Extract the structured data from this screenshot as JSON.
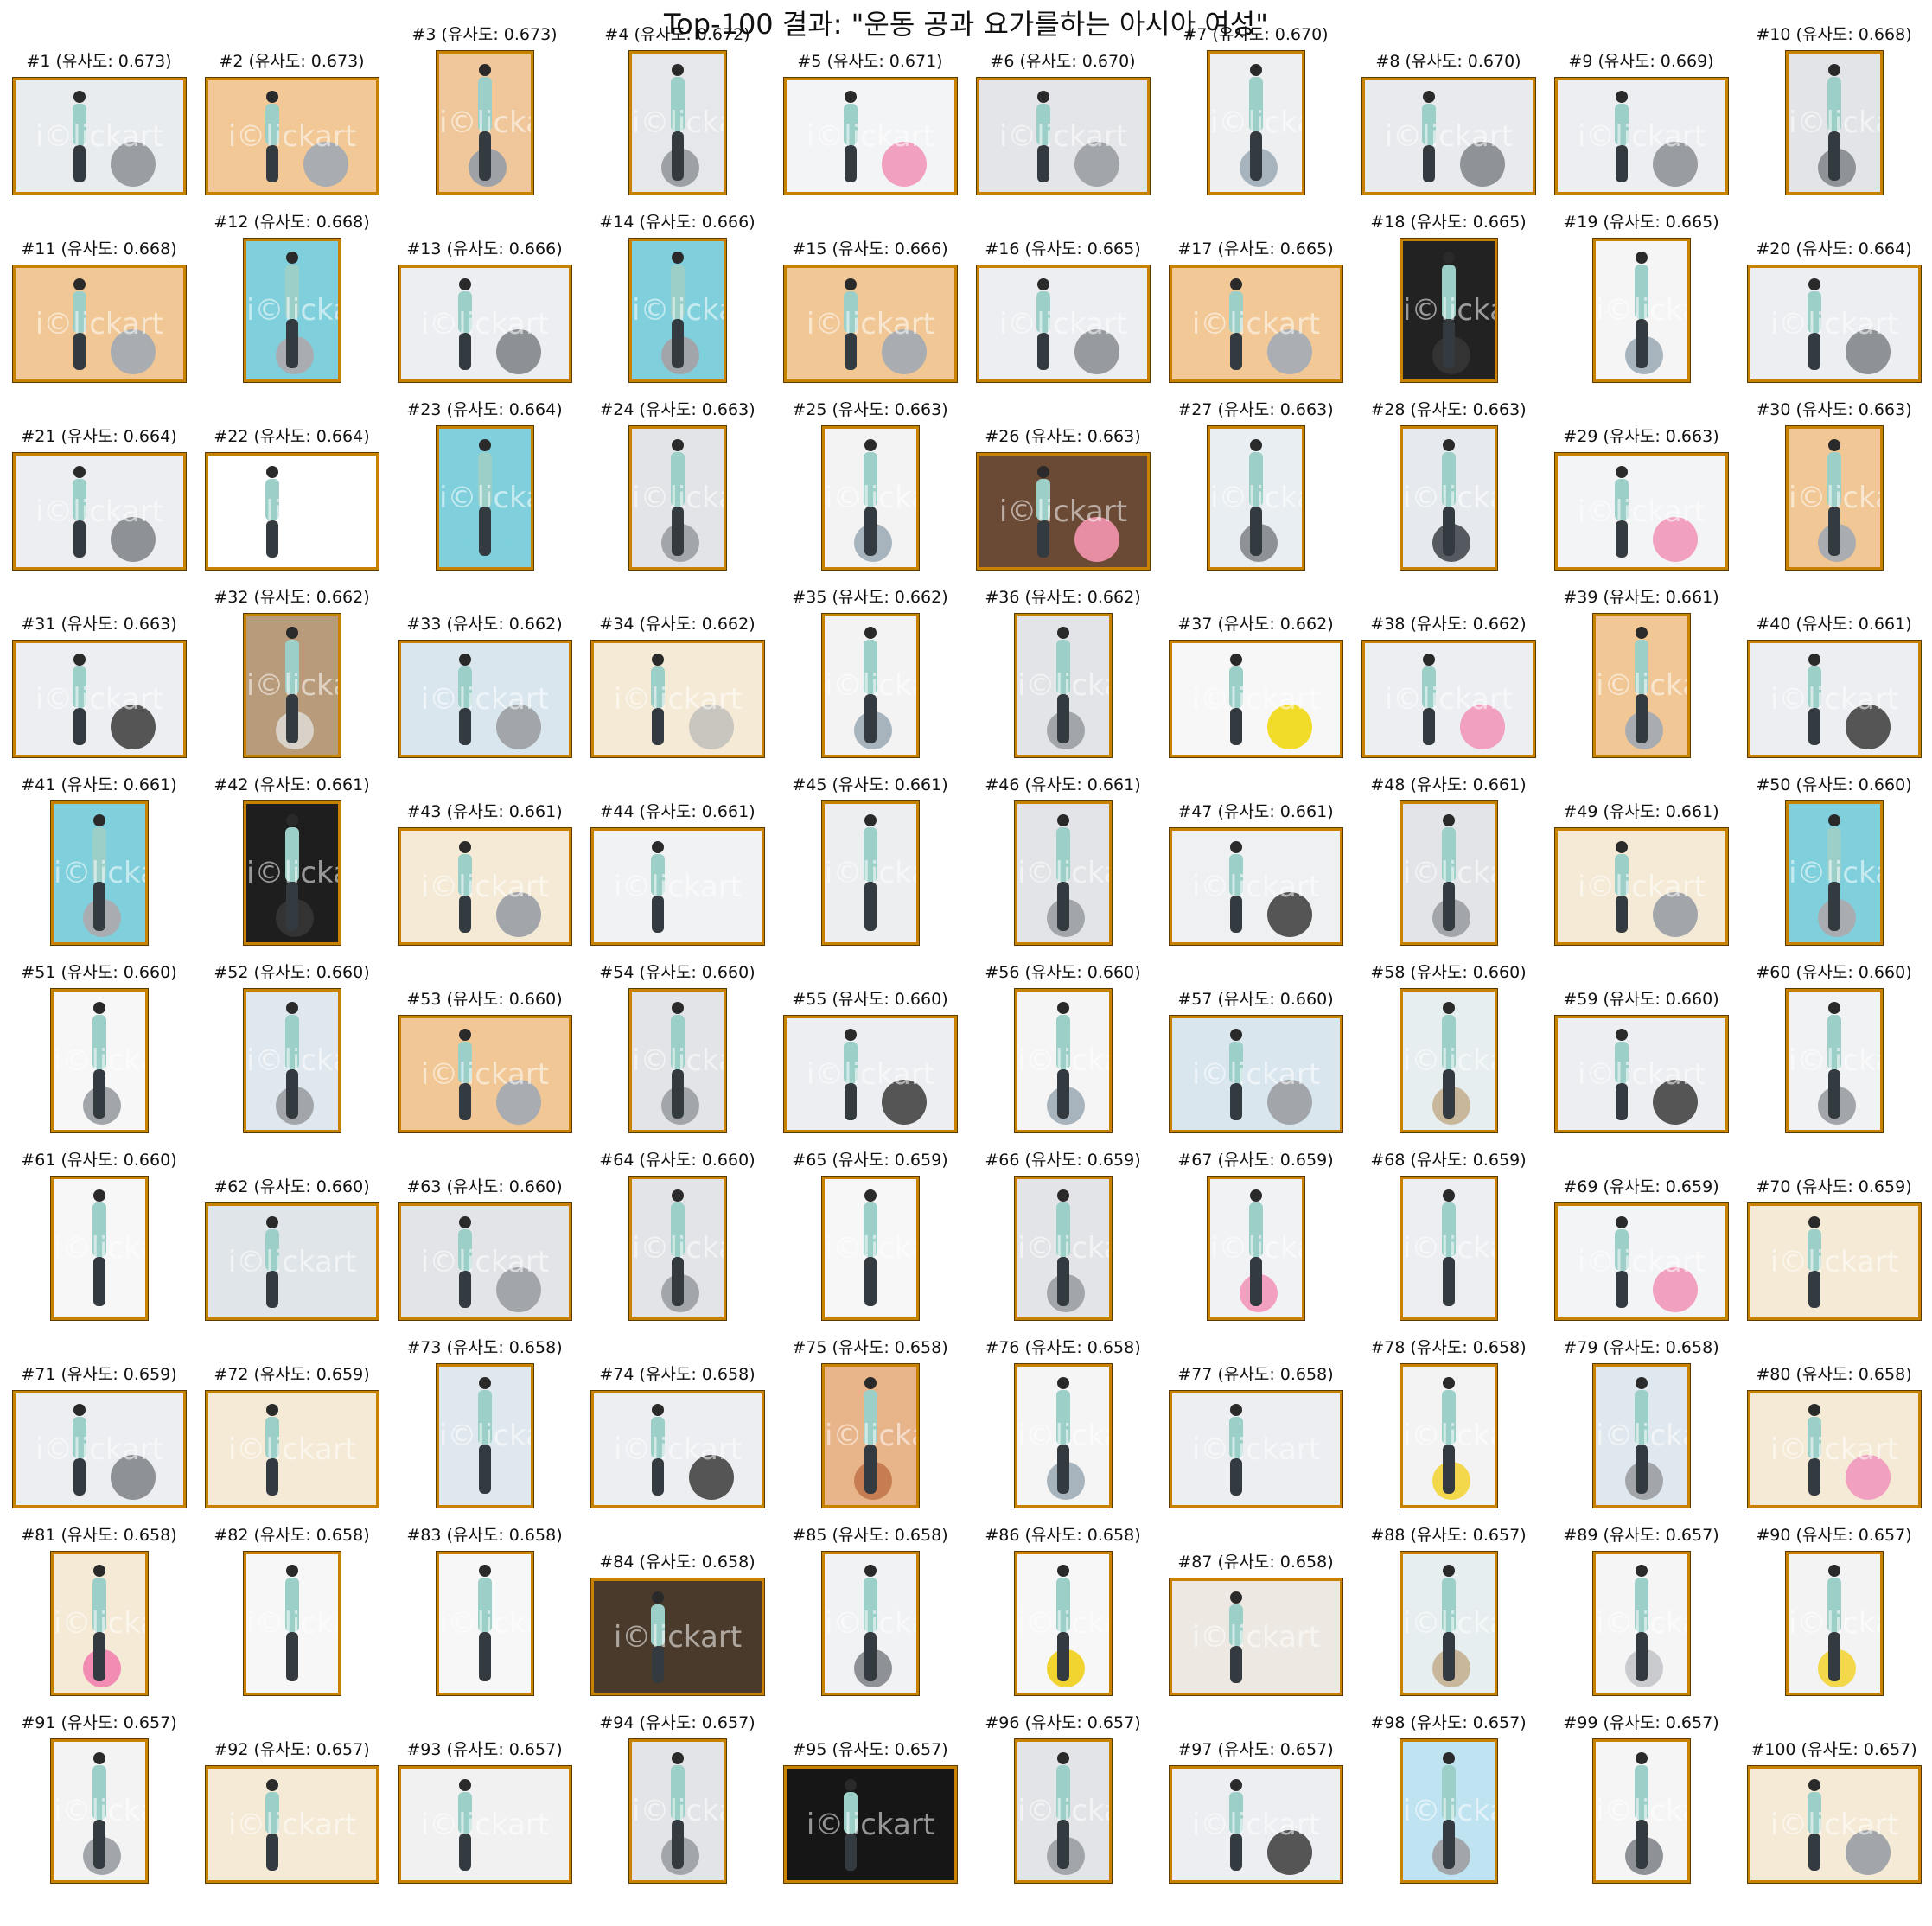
{
  "page_title": "Top-100 결과: \"운동 공과 요가를하는 아시아 여성\"",
  "watermark": "i©lickart",
  "results": [
    {
      "label": "#1 (유사도: 0.673)",
      "o": "L",
      "bg": "#e9ecef",
      "ball": "#9a9ea3"
    },
    {
      "label": "#2 (유사도: 0.673)",
      "o": "L",
      "bg": "#f2c896",
      "ball": "#a9adb2"
    },
    {
      "label": "#3 (유사도: 0.673)",
      "o": "P",
      "bg": "#f0c79a",
      "ball": "#9ea2a7"
    },
    {
      "label": "#4 (유사도: 0.672)",
      "o": "P",
      "bg": "#e6e7ea",
      "ball": "#9da1a6"
    },
    {
      "label": "#5 (유사도: 0.671)",
      "o": "L",
      "bg": "#f3f4f6",
      "ball": "#f2a0c0"
    },
    {
      "label": "#6 (유사도: 0.670)",
      "o": "L",
      "bg": "#e4e5e8",
      "ball": "#a2a6ab"
    },
    {
      "label": "#7 (유사도: 0.670)",
      "o": "P",
      "bg": "#eeeff1",
      "ball": "#a7b4bd"
    },
    {
      "label": "#8 (유사도: 0.670)",
      "o": "L",
      "bg": "#e8eaed",
      "ball": "#8f9398"
    },
    {
      "label": "#9 (유사도: 0.669)",
      "o": "L",
      "bg": "#eceef1",
      "ball": "#999da2"
    },
    {
      "label": "#10 (유사도: 0.668)",
      "o": "P",
      "bg": "#e3e4e7",
      "ball": "#8f9397"
    },
    {
      "label": "#11 (유사도: 0.668)",
      "o": "L",
      "bg": "#f1c795",
      "ball": "#a9adb1"
    },
    {
      "label": "#12 (유사도: 0.668)",
      "o": "P",
      "bg": "#7fd0dc",
      "ball": "#a9adb1"
    },
    {
      "label": "#13 (유사도: 0.666)",
      "o": "L",
      "bg": "#eceef1",
      "ball": "#8d9196"
    },
    {
      "label": "#14 (유사도: 0.666)",
      "o": "P",
      "bg": "#7fd0dc",
      "ball": "#a2a6ab"
    },
    {
      "label": "#15 (유사도: 0.666)",
      "o": "L",
      "bg": "#f1c795",
      "ball": "#a9adb1"
    },
    {
      "label": "#16 (유사도: 0.665)",
      "o": "L",
      "bg": "#eceef1",
      "ball": "#979ba0"
    },
    {
      "label": "#17 (유사도: 0.665)",
      "o": "L",
      "bg": "#f2c896",
      "ball": "#abafb4"
    },
    {
      "label": "#18 (유사도: 0.665)",
      "o": "P",
      "bg": "#222222",
      "ball": "#333333"
    },
    {
      "label": "#19 (유사도: 0.665)",
      "o": "P",
      "bg": "#f5f5f5",
      "ball": "#a7b4bd"
    },
    {
      "label": "#20 (유사도: 0.664)",
      "o": "L",
      "bg": "#eceef1",
      "ball": "#8e9297"
    },
    {
      "label": "#21 (유사도: 0.664)",
      "o": "L",
      "bg": "#eceef1",
      "ball": "#8e9297"
    },
    {
      "label": "#22 (유사도: 0.664)",
      "o": "L",
      "bg": "#ffffff",
      "ball": "#ffffff"
    },
    {
      "label": "#23 (유사도: 0.664)",
      "o": "P",
      "bg": "#7fd0dc",
      "ball": "#7fd0dc"
    },
    {
      "label": "#24 (유사도: 0.663)",
      "o": "P",
      "bg": "#e3e4e7",
      "ball": "#a2a6ab"
    },
    {
      "label": "#25 (유사도: 0.663)",
      "o": "P",
      "bg": "#f3f3f3",
      "ball": "#a7b4bd"
    },
    {
      "label": "#26 (유사도: 0.663)",
      "o": "L",
      "bg": "#6b4a35",
      "ball": "#e88ea4"
    },
    {
      "label": "#27 (유사도: 0.663)",
      "o": "P",
      "bg": "#e8eef2",
      "ball": "#8e9297"
    },
    {
      "label": "#28 (유사도: 0.663)",
      "o": "P",
      "bg": "#e6eaee",
      "ball": "#555a60"
    },
    {
      "label": "#29 (유사도: 0.663)",
      "o": "L",
      "bg": "#f3f4f6",
      "ball": "#f2a0c0"
    },
    {
      "label": "#30 (유사도: 0.663)",
      "o": "P",
      "bg": "#f1c795",
      "ball": "#a9adb1"
    },
    {
      "label": "#31 (유사도: 0.663)",
      "o": "L",
      "bg": "#eceef1",
      "ball": "#555555"
    },
    {
      "label": "#32 (유사도: 0.662)",
      "o": "P",
      "bg": "#b89b7a",
      "ball": "#d9d2c8"
    },
    {
      "label": "#33 (유사도: 0.662)",
      "o": "L",
      "bg": "#d9e6ee",
      "ball": "#a2a6ab"
    },
    {
      "label": "#34 (유사도: 0.662)",
      "o": "L",
      "bg": "#f4ead6",
      "ball": "#c9c6bf"
    },
    {
      "label": "#35 (유사도: 0.662)",
      "o": "P",
      "bg": "#f3f3f3",
      "ball": "#a7b4bd"
    },
    {
      "label": "#36 (유사도: 0.662)",
      "o": "P",
      "bg": "#e3e4e7",
      "ball": "#a2a6ab"
    },
    {
      "label": "#37 (유사도: 0.662)",
      "o": "L",
      "bg": "#f7f7f7",
      "ball": "#f2dc2a"
    },
    {
      "label": "#38 (유사도: 0.662)",
      "o": "L",
      "bg": "#eceef1",
      "ball": "#f2a0c0"
    },
    {
      "label": "#39 (유사도: 0.661)",
      "o": "P",
      "bg": "#f1c795",
      "ball": "#a9adb1"
    },
    {
      "label": "#40 (유사도: 0.661)",
      "o": "L",
      "bg": "#eceef1",
      "ball": "#555555"
    },
    {
      "label": "#41 (유사도: 0.661)",
      "o": "P",
      "bg": "#7fd0dc",
      "ball": "#a9adb1"
    },
    {
      "label": "#42 (유사도: 0.661)",
      "o": "P",
      "bg": "#1e1e1e",
      "ball": "#333333"
    },
    {
      "label": "#43 (유사도: 0.661)",
      "o": "L",
      "bg": "#f4ead6",
      "ball": "#a2a6ab"
    },
    {
      "label": "#44 (유사도: 0.661)",
      "o": "L",
      "bg": "#f1f2f4",
      "ball": "#f1f2f4"
    },
    {
      "label": "#45 (유사도: 0.661)",
      "o": "P",
      "bg": "#eceef0",
      "ball": "#eceef0"
    },
    {
      "label": "#46 (유사도: 0.661)",
      "o": "P",
      "bg": "#e3e4e7",
      "ball": "#a2a6ab"
    },
    {
      "label": "#47 (유사도: 0.661)",
      "o": "L",
      "bg": "#eef0f2",
      "ball": "#555555"
    },
    {
      "label": "#48 (유사도: 0.661)",
      "o": "P",
      "bg": "#e3e4e7",
      "ball": "#a2a6ab"
    },
    {
      "label": "#49 (유사도: 0.661)",
      "o": "L",
      "bg": "#f4ead6",
      "ball": "#a2a6ab"
    },
    {
      "label": "#50 (유사도: 0.660)",
      "o": "P",
      "bg": "#7fd0dc",
      "ball": "#a9adb1"
    },
    {
      "label": "#51 (유사도: 0.660)",
      "o": "P",
      "bg": "#f7f7f7",
      "ball": "#a2a6ab"
    },
    {
      "label": "#52 (유사도: 0.660)",
      "o": "P",
      "bg": "#dfe8ee",
      "ball": "#a2a6ab"
    },
    {
      "label": "#53 (유사도: 0.660)",
      "o": "L",
      "bg": "#f1c795",
      "ball": "#a9adb1"
    },
    {
      "label": "#54 (유사도: 0.660)",
      "o": "P",
      "bg": "#e3e4e7",
      "ball": "#a2a6ab"
    },
    {
      "label": "#55 (유사도: 0.660)",
      "o": "L",
      "bg": "#eceef1",
      "ball": "#555555"
    },
    {
      "label": "#56 (유사도: 0.660)",
      "o": "P",
      "bg": "#f5f5f5",
      "ball": "#a7b4bd"
    },
    {
      "label": "#57 (유사도: 0.660)",
      "o": "L",
      "bg": "#d9e6ee",
      "ball": "#a2a6ab"
    },
    {
      "label": "#58 (유사도: 0.660)",
      "o": "P",
      "bg": "#e6eef0",
      "ball": "#c8b79a"
    },
    {
      "label": "#59 (유사도: 0.660)",
      "o": "L",
      "bg": "#eceef1",
      "ball": "#555555"
    },
    {
      "label": "#60 (유사도: 0.660)",
      "o": "P",
      "bg": "#f1f2f4",
      "ball": "#a2a6ab"
    },
    {
      "label": "#61 (유사도: 0.660)",
      "o": "P",
      "bg": "#f7f7f7",
      "ball": "#f7f7f7"
    },
    {
      "label": "#62 (유사도: 0.660)",
      "o": "L",
      "bg": "#dfe5e8",
      "ball": "#dfe5e8"
    },
    {
      "label": "#63 (유사도: 0.660)",
      "o": "L",
      "bg": "#e3e4e7",
      "ball": "#a2a6ab"
    },
    {
      "label": "#64 (유사도: 0.660)",
      "o": "P",
      "bg": "#e3e4e7",
      "ball": "#a2a6ab"
    },
    {
      "label": "#65 (유사도: 0.659)",
      "o": "P",
      "bg": "#f7f7f7",
      "ball": "#f7f7f7"
    },
    {
      "label": "#66 (유사도: 0.659)",
      "o": "P",
      "bg": "#e3e4e7",
      "ball": "#a2a6ab"
    },
    {
      "label": "#67 (유사도: 0.659)",
      "o": "P",
      "bg": "#f1f2f4",
      "ball": "#f2a0c0"
    },
    {
      "label": "#68 (유사도: 0.659)",
      "o": "P",
      "bg": "#eceef1",
      "ball": "#eceef1"
    },
    {
      "label": "#69 (유사도: 0.659)",
      "o": "L",
      "bg": "#f3f4f6",
      "ball": "#f2a0c0"
    },
    {
      "label": "#70 (유사도: 0.659)",
      "o": "L",
      "bg": "#f4ead6",
      "ball": "#f4ead6"
    },
    {
      "label": "#71 (유사도: 0.659)",
      "o": "L",
      "bg": "#eceef1",
      "ball": "#8e9297"
    },
    {
      "label": "#72 (유사도: 0.659)",
      "o": "L",
      "bg": "#f4ead6",
      "ball": "#f4ead6"
    },
    {
      "label": "#73 (유사도: 0.658)",
      "o": "P",
      "bg": "#dfe8ee",
      "ball": "#dfe8ee"
    },
    {
      "label": "#74 (유사도: 0.658)",
      "o": "L",
      "bg": "#eceef1",
      "ball": "#555555"
    },
    {
      "label": "#75 (유사도: 0.658)",
      "o": "P",
      "bg": "#e8b48a",
      "ball": "#c67d52"
    },
    {
      "label": "#76 (유사도: 0.658)",
      "o": "P",
      "bg": "#f5f5f5",
      "ball": "#a7b4bd"
    },
    {
      "label": "#77 (유사도: 0.658)",
      "o": "L",
      "bg": "#eceef1",
      "ball": "#eceef1"
    },
    {
      "label": "#78 (유사도: 0.658)",
      "o": "P",
      "bg": "#f3f3f3",
      "ball": "#f2d84a"
    },
    {
      "label": "#79 (유사도: 0.658)",
      "o": "P",
      "bg": "#dfe8ee",
      "ball": "#a2a6ab"
    },
    {
      "label": "#80 (유사도: 0.658)",
      "o": "L",
      "bg": "#f4ead6",
      "ball": "#f2a0c0"
    },
    {
      "label": "#81 (유사도: 0.658)",
      "o": "P",
      "bg": "#f4ead6",
      "ball": "#f28cb2"
    },
    {
      "label": "#82 (유사도: 0.658)",
      "o": "P",
      "bg": "#f7f7f7",
      "ball": "#f7f7f7"
    },
    {
      "label": "#83 (유사도: 0.658)",
      "o": "P",
      "bg": "#f7f7f7",
      "ball": "#f7f7f7"
    },
    {
      "label": "#84 (유사도: 0.658)",
      "o": "L",
      "bg": "#4a3a2c",
      "ball": "#4a3a2c"
    },
    {
      "label": "#85 (유사도: 0.658)",
      "o": "P",
      "bg": "#f1f2f4",
      "ball": "#8e9297"
    },
    {
      "label": "#86 (유사도: 0.658)",
      "o": "P",
      "bg": "#f7f7f7",
      "ball": "#f2d430"
    },
    {
      "label": "#87 (유사도: 0.658)",
      "o": "L",
      "bg": "#ede8e2",
      "ball": "#ede8e2"
    },
    {
      "label": "#88 (유사도: 0.657)",
      "o": "P",
      "bg": "#e6eef0",
      "ball": "#c8b79a"
    },
    {
      "label": "#89 (유사도: 0.657)",
      "o": "P",
      "bg": "#f5f5f5",
      "ball": "#c9cbce"
    },
    {
      "label": "#90 (유사도: 0.657)",
      "o": "P",
      "bg": "#f3f3f3",
      "ball": "#f2d84a"
    },
    {
      "label": "#91 (유사도: 0.657)",
      "o": "P",
      "bg": "#f3f3f3",
      "ball": "#a2a6ab"
    },
    {
      "label": "#92 (유사도: 0.657)",
      "o": "L",
      "bg": "#f4ead6",
      "ball": "#f4ead6"
    },
    {
      "label": "#93 (유사도: 0.657)",
      "o": "L",
      "bg": "#f1f1f1",
      "ball": "#f1f1f1"
    },
    {
      "label": "#94 (유사도: 0.657)",
      "o": "P",
      "bg": "#e3e4e7",
      "ball": "#a2a6ab"
    },
    {
      "label": "#95 (유사도: 0.657)",
      "o": "L",
      "bg": "#161616",
      "ball": "#161616"
    },
    {
      "label": "#96 (유사도: 0.657)",
      "o": "P",
      "bg": "#e3e4e7",
      "ball": "#a2a6ab"
    },
    {
      "label": "#97 (유사도: 0.657)",
      "o": "L",
      "bg": "#eceef1",
      "ball": "#555555"
    },
    {
      "label": "#98 (유사도: 0.657)",
      "o": "P",
      "bg": "#bfe3f0",
      "ball": "#a2a6ab"
    },
    {
      "label": "#99 (유사도: 0.657)",
      "o": "P",
      "bg": "#f5f5f5",
      "ball": "#8e9297"
    },
    {
      "label": "#100 (유사도: 0.657)",
      "o": "L",
      "bg": "#f4ead6",
      "ball": "#a2a6ab"
    }
  ]
}
